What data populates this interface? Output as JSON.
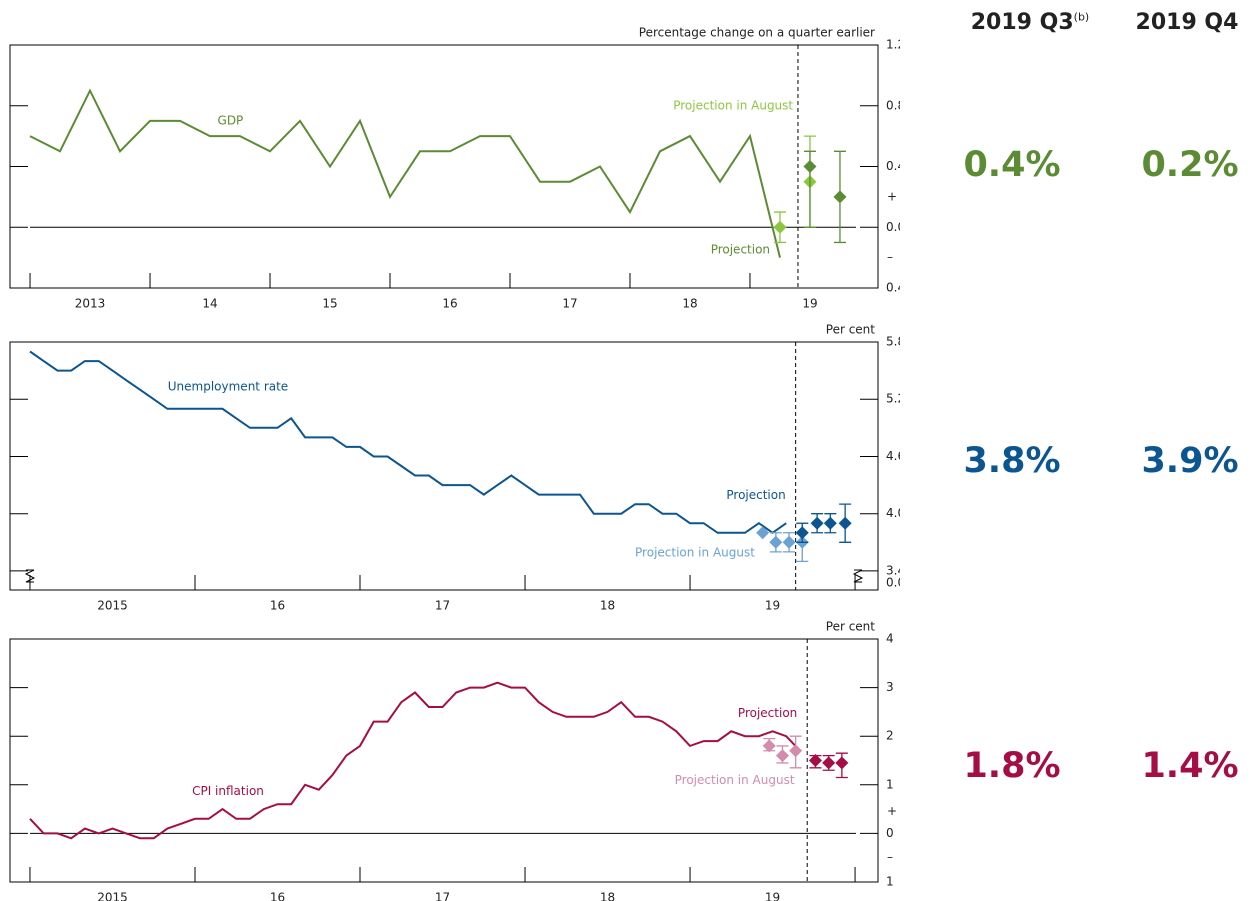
{
  "chart_data": [
    {
      "type": "line",
      "title": "Percentage change on a quarter earlier",
      "xlim": [
        2012.833,
        2020.067
      ],
      "xticks": [
        {
          "value": 2013.5,
          "label": "2013"
        },
        {
          "value": 2014.5,
          "label": "14"
        },
        {
          "value": 2015.5,
          "label": "15"
        },
        {
          "value": 2016.5,
          "label": "16"
        },
        {
          "value": 2017.5,
          "label": "17"
        },
        {
          "value": 2018.5,
          "label": "18"
        },
        {
          "value": 2019.5,
          "label": "19"
        }
      ],
      "xtick_marks": [
        2013,
        2014,
        2015,
        2016,
        2017,
        2018,
        2019
      ],
      "ylim": [
        -0.4,
        1.2
      ],
      "yticks": [
        {
          "value": 1.2,
          "label": "1.2"
        },
        {
          "value": 0.8,
          "label": "0.8"
        },
        {
          "value": 0.4,
          "label": "0.4"
        },
        {
          "value": 0,
          "label": "0.0"
        },
        {
          "value": -0.4,
          "label": "0.4"
        }
      ],
      "signs": [
        {
          "text": "+",
          "y": 0.2
        },
        {
          "text": "–",
          "y": -0.2
        }
      ],
      "zero_line": true,
      "divider_x": 2019.4,
      "series": [
        {
          "name": "GDP",
          "color": "#5b8c34",
          "label_x": 2014.67,
          "label_y": 0.7,
          "x": [
            2013,
            2013.25,
            2013.5,
            2013.75,
            2014,
            2014.25,
            2014.5,
            2014.75,
            2015,
            2015.25,
            2015.5,
            2015.75,
            2016,
            2016.25,
            2016.5,
            2016.75,
            2017,
            2017.25,
            2017.5,
            2017.75,
            2018,
            2018.25,
            2018.5,
            2018.75,
            2019,
            2019.25
          ],
          "values": [
            0.6,
            0.5,
            0.9,
            0.5,
            0.7,
            0.7,
            0.6,
            0.6,
            0.5,
            0.7,
            0.4,
            0.7,
            0.2,
            0.5,
            0.5,
            0.6,
            0.6,
            0.3,
            0.3,
            0.4,
            0.1,
            0.5,
            0.6,
            0.3,
            0.6,
            -0.2
          ]
        }
      ],
      "projections": [
        {
          "name": "Projection in August",
          "color": "#8cc63f",
          "label_x": 2018.86,
          "label_y": 0.8,
          "x": [
            2019.25,
            2019.5
          ],
          "values": [
            0.0,
            0.3
          ],
          "low": [
            -0.1,
            0.0
          ],
          "high": [
            0.1,
            0.6
          ]
        },
        {
          "name": "Projection",
          "color": "#5b8c34",
          "label_x": 2018.92,
          "label_y": -0.15,
          "x": [
            2019.5,
            2019.75
          ],
          "values": [
            0.4,
            0.2
          ],
          "low": [
            0.0,
            -0.1
          ],
          "high": [
            0.5,
            0.5
          ]
        }
      ]
    },
    {
      "type": "line",
      "title": "Per cent",
      "xlim": [
        2014.879,
        2020.139
      ],
      "xticks": [
        {
          "value": 2015.5,
          "label": "2015"
        },
        {
          "value": 2016.5,
          "label": "16"
        },
        {
          "value": 2017.5,
          "label": "17"
        },
        {
          "value": 2018.5,
          "label": "18"
        },
        {
          "value": 2019.5,
          "label": "19"
        }
      ],
      "xtick_marks": [
        2015,
        2016,
        2017,
        2018,
        2019,
        2020
      ],
      "ylim": [
        3.2,
        5.8
      ],
      "yticks": [
        5.8,
        5.2,
        4.6,
        {
          "value": 4.0,
          "label": "4.0"
        },
        3.4
      ],
      "break_label": "0.0",
      "zero_line": false,
      "divider_x": 2019.64,
      "series": [
        {
          "name": "Unemployment rate",
          "color": "#0b5591",
          "label_x": 2016.2,
          "label_y": 5.33,
          "x": [
            2015,
            2015.083,
            2015.167,
            2015.25,
            2015.333,
            2015.417,
            2015.5,
            2015.583,
            2015.667,
            2015.75,
            2015.833,
            2015.917,
            2016,
            2016.083,
            2016.167,
            2016.25,
            2016.333,
            2016.417,
            2016.5,
            2016.583,
            2016.667,
            2016.75,
            2016.833,
            2016.917,
            2017,
            2017.083,
            2017.167,
            2017.25,
            2017.333,
            2017.417,
            2017.5,
            2017.583,
            2017.667,
            2017.75,
            2017.833,
            2017.917,
            2018,
            2018.083,
            2018.167,
            2018.25,
            2018.333,
            2018.417,
            2018.5,
            2018.583,
            2018.667,
            2018.75,
            2018.833,
            2018.917,
            2019,
            2019.083,
            2019.167,
            2019.25,
            2019.333,
            2019.417,
            2019.5,
            2019.583
          ],
          "values": [
            5.7,
            5.6,
            5.5,
            5.5,
            5.6,
            5.6,
            5.5,
            5.4,
            5.3,
            5.2,
            5.1,
            5.1,
            5.1,
            5.1,
            5.1,
            5.0,
            4.9,
            4.9,
            4.9,
            5.0,
            4.8,
            4.8,
            4.8,
            4.7,
            4.7,
            4.6,
            4.6,
            4.5,
            4.4,
            4.4,
            4.3,
            4.3,
            4.3,
            4.2,
            4.3,
            4.4,
            4.3,
            4.2,
            4.2,
            4.2,
            4.2,
            4.0,
            4.0,
            4.0,
            4.1,
            4.1,
            4.0,
            4.0,
            3.9,
            3.9,
            3.8,
            3.8,
            3.8,
            3.9,
            3.8,
            3.9
          ]
        }
      ],
      "projections": [
        {
          "name": "Projection in August",
          "color": "#6aa2d4",
          "label_x": 2019.03,
          "label_y": 3.59,
          "x": [
            2019.44,
            2019.52,
            2019.6,
            2019.68
          ],
          "values": [
            3.8,
            3.7,
            3.7,
            3.7
          ],
          "low": [
            null,
            3.6,
            3.6,
            3.5
          ],
          "high": [
            null,
            3.8,
            3.8,
            3.9
          ]
        },
        {
          "name": "Projection",
          "color": "#0b5591",
          "label_x": 2019.4,
          "label_y": 4.19,
          "x": [
            2019.68,
            2019.77,
            2019.85,
            2019.94
          ],
          "values": [
            3.8,
            3.9,
            3.9,
            3.9
          ],
          "low": [
            3.7,
            3.8,
            3.8,
            3.7
          ],
          "high": [
            3.9,
            4.0,
            4.0,
            4.1
          ]
        }
      ]
    },
    {
      "type": "line",
      "title": "Per cent",
      "xlim": [
        2014.879,
        2020.139
      ],
      "xticks": [
        {
          "value": 2015.5,
          "label": "2015"
        },
        {
          "value": 2016.5,
          "label": "16"
        },
        {
          "value": 2017.5,
          "label": "17"
        },
        {
          "value": 2018.5,
          "label": "18"
        },
        {
          "value": 2019.5,
          "label": "19"
        }
      ],
      "xtick_marks": [
        2015,
        2016,
        2017,
        2018,
        2019,
        2020
      ],
      "ylim": [
        -1,
        4
      ],
      "yticks": [
        4,
        3,
        2,
        1,
        0,
        {
          "value": -1,
          "label": "1"
        }
      ],
      "signs": [
        {
          "text": "+",
          "y": 0.45
        },
        {
          "text": "–",
          "y": -0.5
        }
      ],
      "zero_line": true,
      "divider_x": 2019.71,
      "series": [
        {
          "name": "CPI inflation",
          "color": "#a50d45",
          "label_x": 2016.2,
          "label_y": 0.86,
          "x": [
            2015,
            2015.083,
            2015.167,
            2015.25,
            2015.333,
            2015.417,
            2015.5,
            2015.583,
            2015.667,
            2015.75,
            2015.833,
            2015.917,
            2016,
            2016.083,
            2016.167,
            2016.25,
            2016.333,
            2016.417,
            2016.5,
            2016.583,
            2016.667,
            2016.75,
            2016.833,
            2016.917,
            2017,
            2017.083,
            2017.167,
            2017.25,
            2017.333,
            2017.417,
            2017.5,
            2017.583,
            2017.667,
            2017.75,
            2017.833,
            2017.917,
            2018,
            2018.083,
            2018.167,
            2018.25,
            2018.333,
            2018.417,
            2018.5,
            2018.583,
            2018.667,
            2018.75,
            2018.833,
            2018.917,
            2019,
            2019.083,
            2019.167,
            2019.25,
            2019.333,
            2019.417,
            2019.5,
            2019.583,
            2019.667
          ],
          "values": [
            0.3,
            0.0,
            0.0,
            -0.1,
            0.1,
            0.0,
            0.1,
            0.0,
            -0.1,
            -0.1,
            0.1,
            0.2,
            0.3,
            0.3,
            0.5,
            0.3,
            0.3,
            0.5,
            0.6,
            0.6,
            1.0,
            0.9,
            1.2,
            1.6,
            1.8,
            2.3,
            2.3,
            2.7,
            2.9,
            2.6,
            2.6,
            2.9,
            3.0,
            3.0,
            3.1,
            3.0,
            3.0,
            2.7,
            2.5,
            2.4,
            2.4,
            2.4,
            2.5,
            2.7,
            2.4,
            2.4,
            2.3,
            2.1,
            1.8,
            1.9,
            1.9,
            2.1,
            2.0,
            2.0,
            2.1,
            2.0,
            1.7
          ]
        }
      ],
      "projections": [
        {
          "name": "Projection in August",
          "color": "#d38cab",
          "label_x": 2019.27,
          "label_y": 1.09,
          "x": [
            2019.48,
            2019.56,
            2019.64
          ],
          "values": [
            1.8,
            1.6,
            1.7
          ],
          "low": [
            1.7,
            1.45,
            1.35
          ],
          "high": [
            1.95,
            1.8,
            2.0
          ]
        },
        {
          "name": "Projection",
          "color": "#a50d45",
          "label_x": 2019.47,
          "label_y": 2.47,
          "x": [
            2019.76,
            2019.84,
            2019.92
          ],
          "values": [
            1.5,
            1.45,
            1.45
          ],
          "low": [
            1.35,
            1.3,
            1.15
          ],
          "high": [
            1.6,
            1.6,
            1.65
          ]
        }
      ]
    }
  ],
  "summary": {
    "columns": [
      {
        "label": "2019 Q3",
        "note": "(b)"
      },
      {
        "label": "2019 Q4"
      }
    ],
    "rows": [
      {
        "color": "#5b8c34",
        "values": [
          "0.4%",
          "0.2%"
        ]
      },
      {
        "color": "#0b5591",
        "values": [
          "3.8%",
          "3.9%"
        ]
      },
      {
        "color": "#a50d45",
        "values": [
          "1.8%",
          "1.4%"
        ]
      }
    ]
  }
}
